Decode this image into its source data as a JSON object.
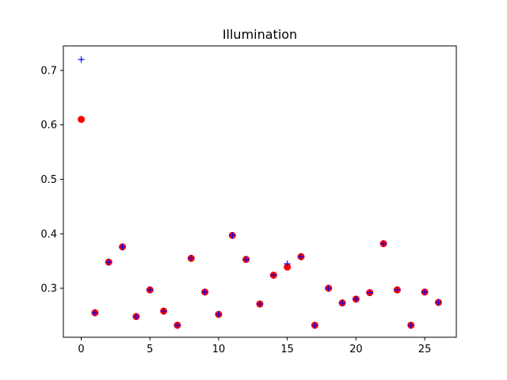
{
  "chart_data": {
    "type": "scatter",
    "title": "Illumination",
    "xlabel": "",
    "ylabel": "",
    "xlim": [
      -1.3,
      27.3
    ],
    "ylim": [
      0.21,
      0.745
    ],
    "xticks": [
      0,
      5,
      10,
      15,
      20,
      25
    ],
    "yticks": [
      0.3,
      0.4,
      0.5,
      0.6,
      0.7
    ],
    "x_tick_labels": [
      "0",
      "5",
      "10",
      "15",
      "20",
      "25"
    ],
    "y_tick_labels": [
      "0.3",
      "0.4",
      "0.5",
      "0.6",
      "0.7"
    ],
    "grid": false,
    "legend": "none",
    "x": [
      0,
      1,
      2,
      3,
      4,
      5,
      6,
      7,
      8,
      9,
      10,
      11,
      12,
      13,
      14,
      15,
      16,
      17,
      18,
      19,
      20,
      21,
      22,
      23,
      24,
      25,
      26
    ],
    "series": [
      {
        "marker": "circle",
        "color": "#ff0000",
        "values": [
          0.61,
          0.255,
          0.348,
          0.376,
          0.248,
          0.297,
          0.258,
          0.232,
          0.355,
          0.293,
          0.252,
          0.397,
          0.353,
          0.271,
          0.324,
          0.339,
          0.358,
          0.232,
          0.3,
          0.273,
          0.28,
          0.292,
          0.382,
          0.297,
          0.232,
          0.293,
          0.274
        ]
      },
      {
        "marker": "plus",
        "color": "#0000ff",
        "values": [
          0.72,
          0.255,
          0.348,
          0.376,
          0.248,
          0.297,
          0.258,
          0.232,
          0.355,
          0.293,
          0.252,
          0.397,
          0.353,
          0.271,
          0.324,
          0.345,
          0.358,
          0.232,
          0.3,
          0.273,
          0.28,
          0.292,
          0.382,
          0.297,
          0.232,
          0.293,
          0.274
        ]
      }
    ]
  }
}
